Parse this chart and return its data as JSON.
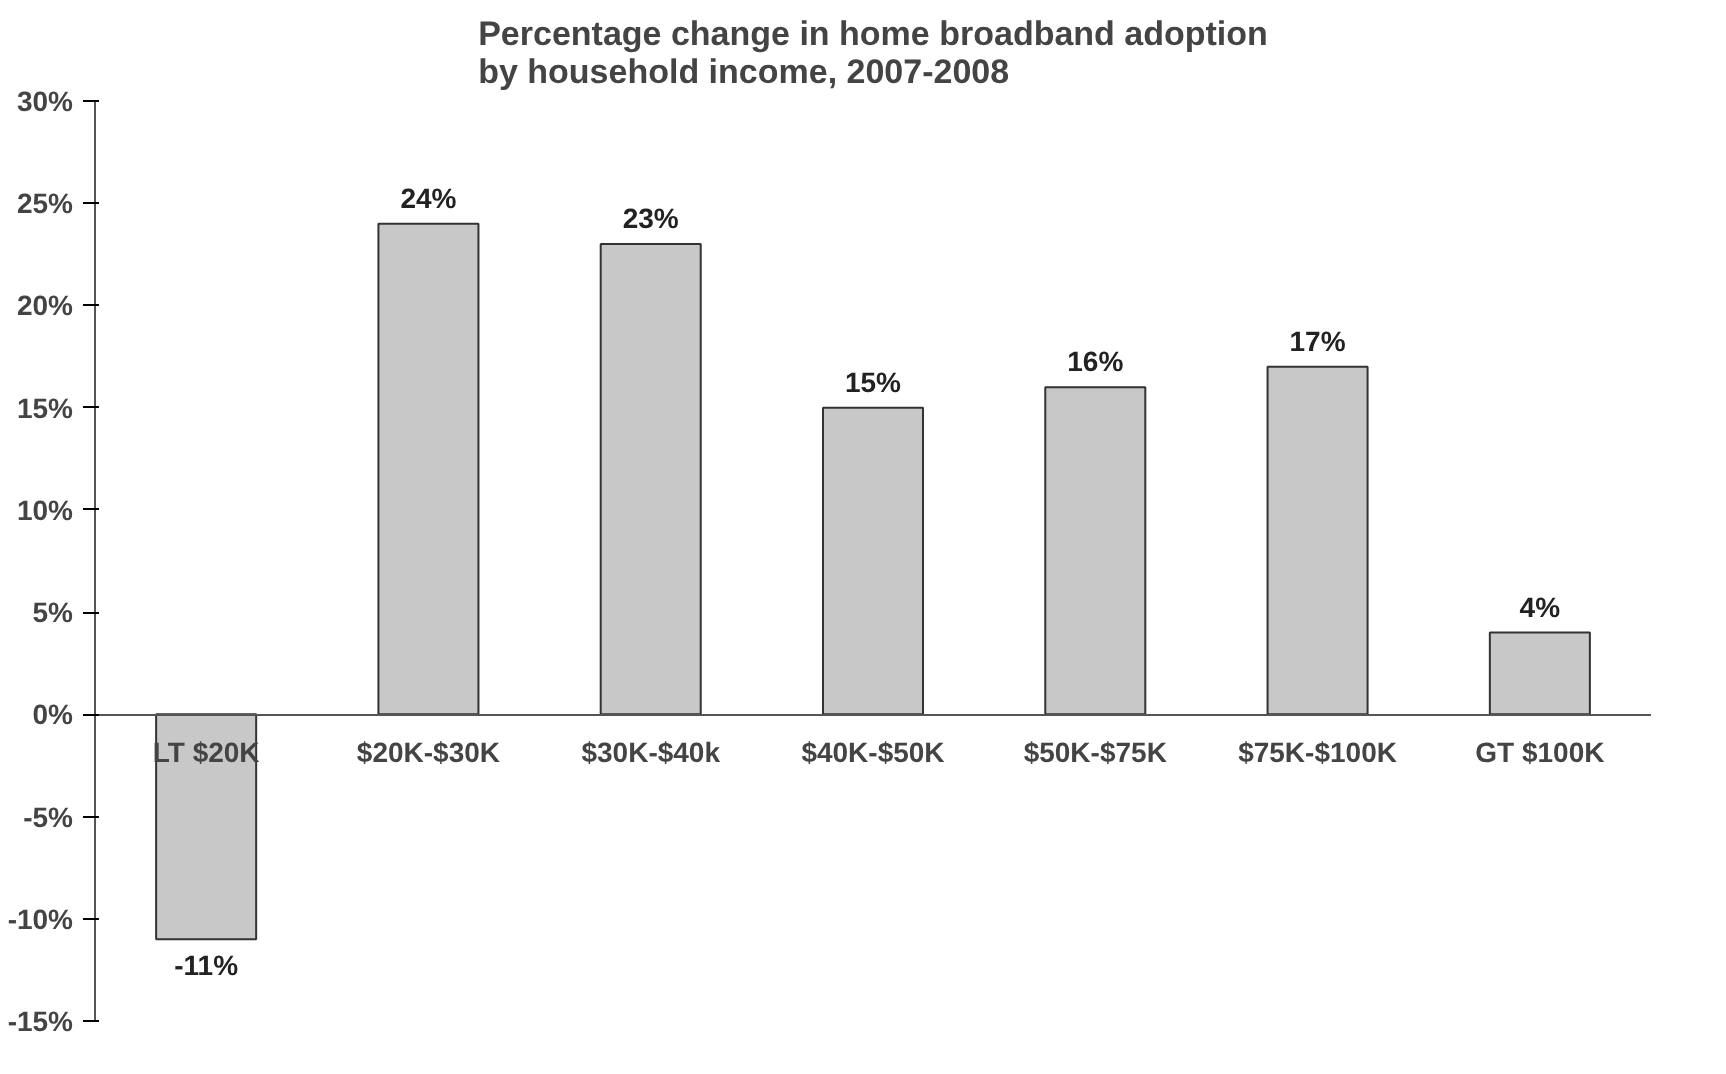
{
  "chart_data": {
    "type": "bar",
    "title": "Percentage change in home broadband adoption\nby household income, 2007-2008",
    "categories": [
      "LT $20K",
      "$20K-$30K",
      "$30K-$40k",
      "$40K-$50K",
      "$50K-$75K",
      "$75K-$100K",
      "GT $100K"
    ],
    "values": [
      -11,
      24,
      23,
      15,
      16,
      17,
      4
    ],
    "value_labels": [
      "-11%",
      "24%",
      "23%",
      "15%",
      "16%",
      "17%",
      "4%"
    ],
    "color": "#c8c8c8",
    "ylim": [
      -15,
      30
    ],
    "yticks": [
      {
        "value": -15,
        "label": "-15%"
      },
      {
        "value": -10,
        "label": "-10%"
      },
      {
        "value": -5,
        "label": "-5%"
      },
      {
        "value": 0,
        "label": "0%"
      },
      {
        "value": 5,
        "label": "5%"
      },
      {
        "value": 10,
        "label": "10%"
      },
      {
        "value": 15,
        "label": "15%"
      },
      {
        "value": 20,
        "label": "20%"
      },
      {
        "value": 25,
        "label": "25%"
      },
      {
        "value": 30,
        "label": "30%"
      }
    ],
    "grid": false
  }
}
